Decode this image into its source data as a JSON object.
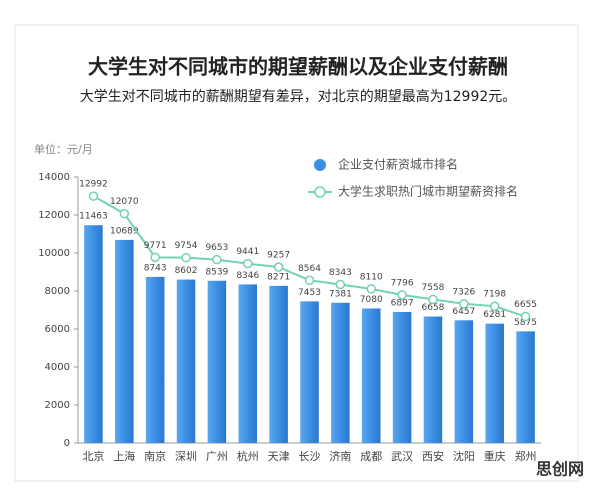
{
  "chart_data": {
    "type": "bar-line",
    "title": "大学生对不同城市的期望薪酬以及企业支付薪酬",
    "subtitle": "大学生对不同城市的薪酬期望有差异，对北京的期望最高为12992元。",
    "y_unit_label": "单位：元/月",
    "categories": [
      "北京",
      "上海",
      "南京",
      "深圳",
      "广州",
      "杭州",
      "天津",
      "长沙",
      "济南",
      "成都",
      "武汉",
      "西安",
      "沈阳",
      "重庆",
      "郑州"
    ],
    "series": [
      {
        "name": "企业支付薪资城市排名",
        "type": "bar",
        "color": "#3d8fe3",
        "values": [
          11463,
          10689,
          8743,
          8602,
          8539,
          8346,
          8271,
          7453,
          7381,
          7080,
          6897,
          6658,
          6457,
          6281,
          5875
        ]
      },
      {
        "name": "大学生求职热门城市期望薪资排名",
        "type": "line",
        "color": "#72d3b2",
        "values": [
          12992,
          12070,
          9771,
          9754,
          9653,
          9441,
          9257,
          8564,
          8343,
          8110,
          7796,
          7558,
          7326,
          7198,
          6655
        ]
      }
    ],
    "ylim": [
      0,
      14000
    ],
    "yticks": [
      0,
      2000,
      4000,
      6000,
      8000,
      10000,
      12000,
      14000
    ],
    "grid": false,
    "legend_position": "top-right",
    "watermark": "思创网"
  }
}
